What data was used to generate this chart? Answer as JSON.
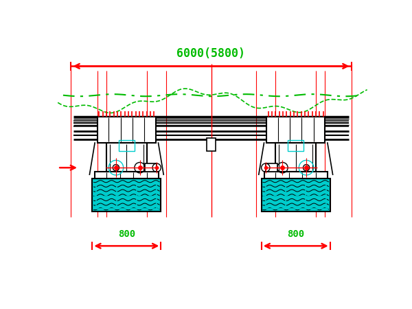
{
  "bg_color": "#ffffff",
  "title_text": "6000(5800)",
  "title_color": "#00bb00",
  "green_color": "#00bb00",
  "red_color": "#ff0000",
  "cyan_color": "#00cccc",
  "black_color": "#000000",
  "fig_width": 6.0,
  "fig_height": 4.5,
  "dpi": 100,
  "dim_800_left_label": "800",
  "dim_800_right_label": "800"
}
